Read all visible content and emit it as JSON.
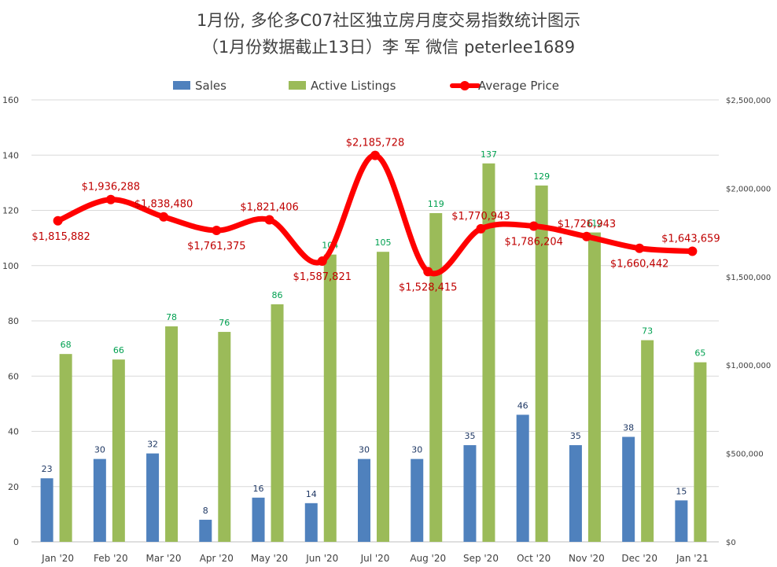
{
  "chart_data": {
    "type": "bar",
    "title": "1月份, 多伦多C07社区独立房月度交易指数统计图示",
    "subtitle": "（1月份数据截止13日）李 军  微信  peterlee1689",
    "categories": [
      "Jan '20",
      "Feb '20",
      "Mar '20",
      "Apr '20",
      "May '20",
      "Jun '20",
      "Jul '20",
      "Aug '20",
      "Sep '20",
      "Oct '20",
      "Nov '20",
      "Dec '20",
      "Jan '21"
    ],
    "series": [
      {
        "name": "Sales",
        "kind": "bar",
        "axis": "left",
        "color": "#4f81bd",
        "values": [
          23,
          30,
          32,
          8,
          16,
          14,
          30,
          30,
          35,
          46,
          35,
          38,
          15
        ]
      },
      {
        "name": "Active Listings",
        "kind": "bar",
        "axis": "left",
        "color": "#9bbb59",
        "values": [
          68,
          66,
          78,
          76,
          86,
          104,
          105,
          119,
          137,
          129,
          112,
          73,
          65
        ]
      },
      {
        "name": "Average Price",
        "kind": "line",
        "axis": "right",
        "color": "#ff0000",
        "values": [
          1815882,
          1936288,
          1838480,
          1761375,
          1821406,
          1587821,
          2185728,
          1528415,
          1770943,
          1786204,
          1726943,
          1660442,
          1643659
        ]
      }
    ],
    "price_labels": [
      "$1,815,882",
      "$1,936,288",
      "$1,838,480",
      "$1,761,375",
      "$1,821,406",
      "$1,587,821",
      "$2,185,728",
      "$1,528,415",
      "$1,770,943",
      "$1,786,204",
      "$1,726,943",
      "$1,660,442",
      "$1,643,659"
    ],
    "y_left": {
      "ylim": [
        0,
        160
      ],
      "ticks": [
        "0",
        "20",
        "40",
        "60",
        "80",
        "100",
        "120",
        "140",
        "160"
      ]
    },
    "y_right": {
      "ylim": [
        0,
        2500000
      ],
      "ticks": [
        "$0",
        "$500,000",
        "$1,000,000",
        "$1,500,000",
        "$2,000,000",
        "$2,500,000"
      ]
    },
    "grid": true,
    "legend_position": "top",
    "colors": {
      "sales_label": "#1f3864",
      "listings_label": "#00a050",
      "price_label": "#c00000"
    }
  }
}
